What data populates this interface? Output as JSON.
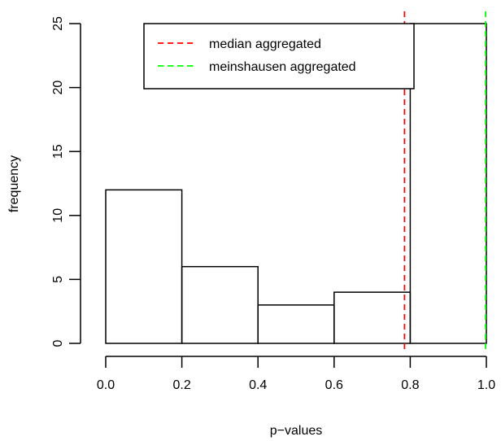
{
  "chart_data": {
    "type": "bar",
    "title": "",
    "xlabel": "p−values",
    "ylabel": "frequency",
    "bins": [
      {
        "from": 0.0,
        "to": 0.2,
        "count": 12
      },
      {
        "from": 0.2,
        "to": 0.4,
        "count": 6
      },
      {
        "from": 0.4,
        "to": 0.6,
        "count": 3
      },
      {
        "from": 0.6,
        "to": 0.8,
        "count": 4
      },
      {
        "from": 0.8,
        "to": 1.0,
        "count": 25
      }
    ],
    "xlim": [
      0.0,
      1.0
    ],
    "ylim": [
      0,
      25
    ],
    "x_ticks": [
      "0.0",
      "0.2",
      "0.4",
      "0.6",
      "0.8",
      "1.0"
    ],
    "y_ticks": [
      "0",
      "5",
      "10",
      "15",
      "20",
      "25"
    ],
    "reference_lines": [
      {
        "name": "median aggregated",
        "x": 0.785,
        "color": "#ff0000",
        "dash": "dashed"
      },
      {
        "name": "meinshausen aggregated",
        "x": 0.998,
        "color": "#00ff00",
        "dash": "dashed"
      }
    ],
    "legend": {
      "position": "top-center",
      "entries": [
        "median aggregated",
        "meinshausen aggregated"
      ]
    },
    "grid": false
  }
}
